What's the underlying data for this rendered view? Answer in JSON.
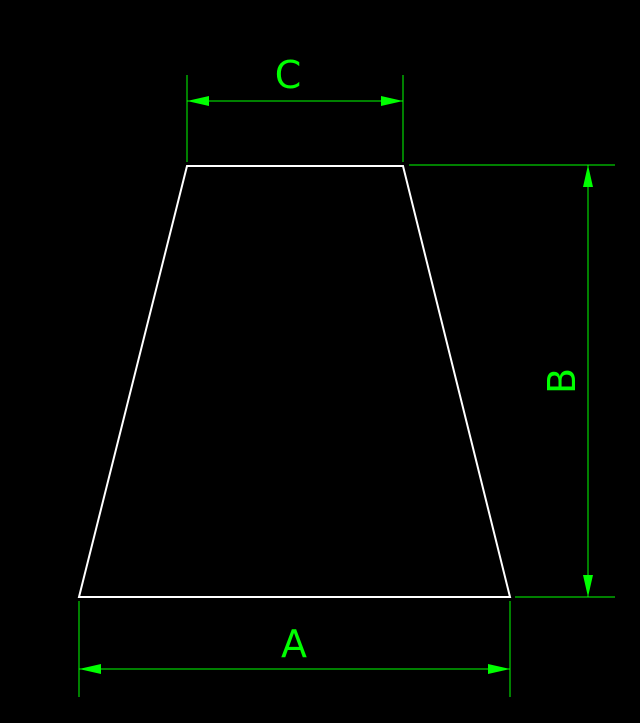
{
  "colors": {
    "background": "#000000",
    "shape": "#ffffff",
    "dimension": "#00ff00"
  },
  "dimensions": {
    "top_width_label": "C",
    "height_label": "B",
    "bottom_width_label": "A"
  }
}
